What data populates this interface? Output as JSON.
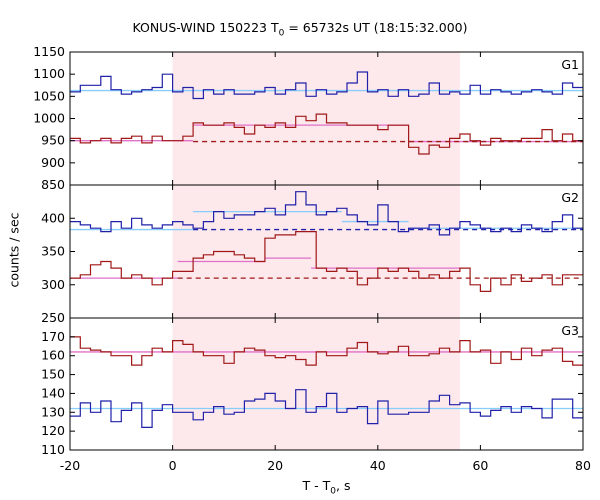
{
  "title": {
    "prefix": "KONUS-WIND 150223 T",
    "sub": "0",
    "suffix": " = 65732s UT (18:15:32.000)"
  },
  "xaxis": {
    "label_prefix": "T - T",
    "label_sub": "0",
    "label_suffix": ", s"
  },
  "ylabel": "counts / sec",
  "colors": {
    "blue_step": "#2020a8",
    "red_step": "#a01818",
    "blue_fit": "#87cefa",
    "red_fit": "#e070c8",
    "interval": "#fde8ec"
  },
  "chart_data": {
    "type": "line",
    "subtype": "step-histogram",
    "x_range": [
      -20,
      80
    ],
    "x_ticks": [
      -20,
      0,
      20,
      40,
      60,
      80
    ],
    "highlight_interval": [
      0,
      56
    ],
    "panels": [
      {
        "name": "G1",
        "ylim": [
          850,
          1150
        ],
        "y_ticks": [
          850,
          900,
          950,
          1000,
          1050,
          1100,
          1150
        ],
        "series": [
          {
            "color": "blue",
            "x": [
              -20,
              -18,
              -16,
              -14,
              -12,
              -10,
              -8,
              -6,
              -4,
              -2,
              0,
              2,
              4,
              6,
              8,
              10,
              12,
              14,
              16,
              18,
              20,
              22,
              24,
              26,
              28,
              30,
              32,
              34,
              36,
              38,
              40,
              42,
              44,
              46,
              48,
              50,
              52,
              54,
              56,
              58,
              60,
              62,
              64,
              66,
              68,
              70,
              72,
              74,
              76,
              78
            ],
            "values": [
              1060,
              1075,
              1075,
              1095,
              1065,
              1055,
              1060,
              1065,
              1070,
              1100,
              1060,
              1070,
              1045,
              1065,
              1055,
              1065,
              1055,
              1055,
              1060,
              1070,
              1055,
              1065,
              1080,
              1050,
              1065,
              1055,
              1060,
              1080,
              1105,
              1060,
              1065,
              1050,
              1065,
              1050,
              1055,
              1080,
              1055,
              1060,
              1055,
              1075,
              1055,
              1065,
              1060,
              1055,
              1060,
              1065,
              1060,
              1055,
              1080,
              1070
            ]
          },
          {
            "color": "red",
            "x": [
              -20,
              -18,
              -16,
              -14,
              -12,
              -10,
              -8,
              -6,
              -4,
              -2,
              0,
              2,
              4,
              6,
              8,
              10,
              12,
              14,
              16,
              18,
              20,
              22,
              24,
              26,
              28,
              30,
              32,
              34,
              36,
              38,
              40,
              42,
              44,
              46,
              48,
              50,
              52,
              54,
              56,
              58,
              60,
              62,
              64,
              66,
              68,
              70,
              72,
              74,
              76,
              78
            ],
            "values": [
              955,
              945,
              950,
              955,
              945,
              955,
              960,
              945,
              960,
              950,
              950,
              960,
              990,
              985,
              985,
              990,
              980,
              965,
              985,
              980,
              990,
              980,
              1005,
              995,
              1010,
              990,
              990,
              985,
              985,
              985,
              975,
              985,
              985,
              935,
              920,
              940,
              935,
              955,
              965,
              950,
              940,
              955,
              950,
              950,
              955,
              955,
              975,
              950,
              965,
              950
            ]
          }
        ],
        "fits": [
          {
            "color": "blue",
            "x_start": -20,
            "x_end": 80,
            "value": 1063
          },
          {
            "color": "red",
            "x_start": -20,
            "x_end": 4,
            "value": 950
          },
          {
            "color": "red",
            "x_start": 4,
            "x_end": 46,
            "value": 985
          },
          {
            "color": "red",
            "x_start": 46,
            "x_end": 80,
            "value": 948
          },
          {
            "color": "red",
            "style": "dashed",
            "x_start": 4,
            "x_end": 80,
            "value": 948
          }
        ]
      },
      {
        "name": "G2",
        "ylim": [
          250,
          450
        ],
        "y_ticks": [
          250,
          300,
          350,
          400
        ],
        "series": [
          {
            "color": "blue",
            "x": [
              -20,
              -18,
              -16,
              -14,
              -12,
              -10,
              -8,
              -6,
              -4,
              -2,
              0,
              2,
              4,
              6,
              8,
              10,
              12,
              14,
              16,
              18,
              20,
              22,
              24,
              26,
              28,
              30,
              32,
              34,
              36,
              38,
              40,
              42,
              44,
              46,
              48,
              50,
              52,
              54,
              56,
              58,
              60,
              62,
              64,
              66,
              68,
              70,
              72,
              74,
              76,
              78
            ],
            "values": [
              395,
              390,
              385,
              380,
              395,
              385,
              400,
              390,
              385,
              390,
              395,
              390,
              385,
              395,
              410,
              400,
              405,
              405,
              410,
              415,
              405,
              420,
              440,
              420,
              405,
              410,
              415,
              405,
              395,
              390,
              420,
              395,
              380,
              385,
              385,
              390,
              375,
              385,
              395,
              390,
              385,
              380,
              385,
              380,
              390,
              385,
              380,
              395,
              405,
              385
            ]
          },
          {
            "color": "red",
            "x": [
              -20,
              -18,
              -16,
              -14,
              -12,
              -10,
              -8,
              -6,
              -4,
              -2,
              0,
              2,
              4,
              6,
              8,
              10,
              12,
              14,
              16,
              18,
              20,
              22,
              24,
              26,
              28,
              30,
              32,
              34,
              36,
              38,
              40,
              42,
              44,
              46,
              48,
              50,
              52,
              54,
              56,
              58,
              60,
              62,
              64,
              66,
              68,
              70,
              72,
              74,
              76,
              78
            ],
            "values": [
              310,
              315,
              330,
              335,
              325,
              310,
              315,
              310,
              300,
              310,
              320,
              320,
              340,
              345,
              350,
              350,
              345,
              340,
              335,
              370,
              375,
              375,
              380,
              380,
              325,
              320,
              325,
              320,
              300,
              310,
              325,
              320,
              325,
              320,
              310,
              315,
              310,
              320,
              325,
              300,
              290,
              310,
              300,
              315,
              305,
              310,
              315,
              300,
              315,
              315
            ]
          }
        ],
        "fits": [
          {
            "color": "blue",
            "x_start": -20,
            "x_end": 4,
            "value": 383
          },
          {
            "color": "blue",
            "x_start": 4,
            "x_end": 33,
            "value": 410
          },
          {
            "color": "blue",
            "x_start": 33,
            "x_end": 46,
            "value": 395
          },
          {
            "color": "blue",
            "x_start": 46,
            "x_end": 80,
            "value": 385
          },
          {
            "color": "blue",
            "style": "dashed",
            "x_start": 4,
            "x_end": 80,
            "value": 383
          },
          {
            "color": "red",
            "x_start": -20,
            "x_end": 1,
            "value": 310
          },
          {
            "color": "red",
            "x_start": 1,
            "x_end": 18,
            "value": 335
          },
          {
            "color": "red",
            "x_start": 18,
            "x_end": 27,
            "value": 340
          },
          {
            "color": "red",
            "x_start": 27,
            "x_end": 56,
            "value": 325
          },
          {
            "color": "red",
            "style": "dashed",
            "x_start": 1,
            "x_end": 80,
            "value": 310
          }
        ]
      },
      {
        "name": "G3",
        "ylim": [
          110,
          180
        ],
        "y_ticks": [
          110,
          120,
          130,
          140,
          150,
          160,
          170
        ],
        "series": [
          {
            "color": "blue",
            "x": [
              -20,
              -18,
              -16,
              -14,
              -12,
              -10,
              -8,
              -6,
              -4,
              -2,
              0,
              2,
              4,
              6,
              8,
              10,
              12,
              14,
              16,
              18,
              20,
              22,
              24,
              26,
              28,
              30,
              32,
              34,
              36,
              38,
              40,
              42,
              44,
              46,
              48,
              50,
              52,
              54,
              56,
              58,
              60,
              62,
              64,
              66,
              68,
              70,
              72,
              74,
              76,
              78
            ],
            "values": [
              128,
              135,
              130,
              136,
              125,
              131,
              135,
              122,
              131,
              134,
              130,
              130,
              126,
              130,
              133,
              129,
              130,
              136,
              137,
              140,
              136,
              132,
              142,
              130,
              133,
              140,
              130,
              132,
              133,
              124,
              136,
              129,
              129,
              130,
              130,
              136,
              139,
              134,
              135,
              130,
              128,
              131,
              133,
              130,
              133,
              132,
              127,
              137,
              137,
              127
            ]
          },
          {
            "color": "red",
            "x": [
              -20,
              -18,
              -16,
              -14,
              -12,
              -10,
              -8,
              -6,
              -4,
              -2,
              0,
              2,
              4,
              6,
              8,
              10,
              12,
              14,
              16,
              18,
              20,
              22,
              24,
              26,
              28,
              30,
              32,
              34,
              36,
              38,
              40,
              42,
              44,
              46,
              48,
              50,
              52,
              54,
              56,
              58,
              60,
              62,
              64,
              66,
              68,
              70,
              72,
              74,
              76,
              78
            ],
            "values": [
              170,
              164,
              163,
              162,
              160,
              160,
              155,
              160,
              164,
              162,
              168,
              166,
              162,
              160,
              160,
              156,
              162,
              164,
              163,
              160,
              159,
              160,
              158,
              155,
              162,
              160,
              160,
              164,
              167,
              162,
              161,
              162,
              165,
              160,
              160,
              161,
              164,
              162,
              168,
              162,
              163,
              156,
              162,
              158,
              164,
              160,
              163,
              164,
              157,
              155
            ]
          }
        ],
        "fits": [
          {
            "color": "blue",
            "x_start": -20,
            "x_end": 80,
            "value": 132
          },
          {
            "color": "red",
            "x_start": -20,
            "x_end": 80,
            "value": 162
          }
        ]
      }
    ]
  }
}
